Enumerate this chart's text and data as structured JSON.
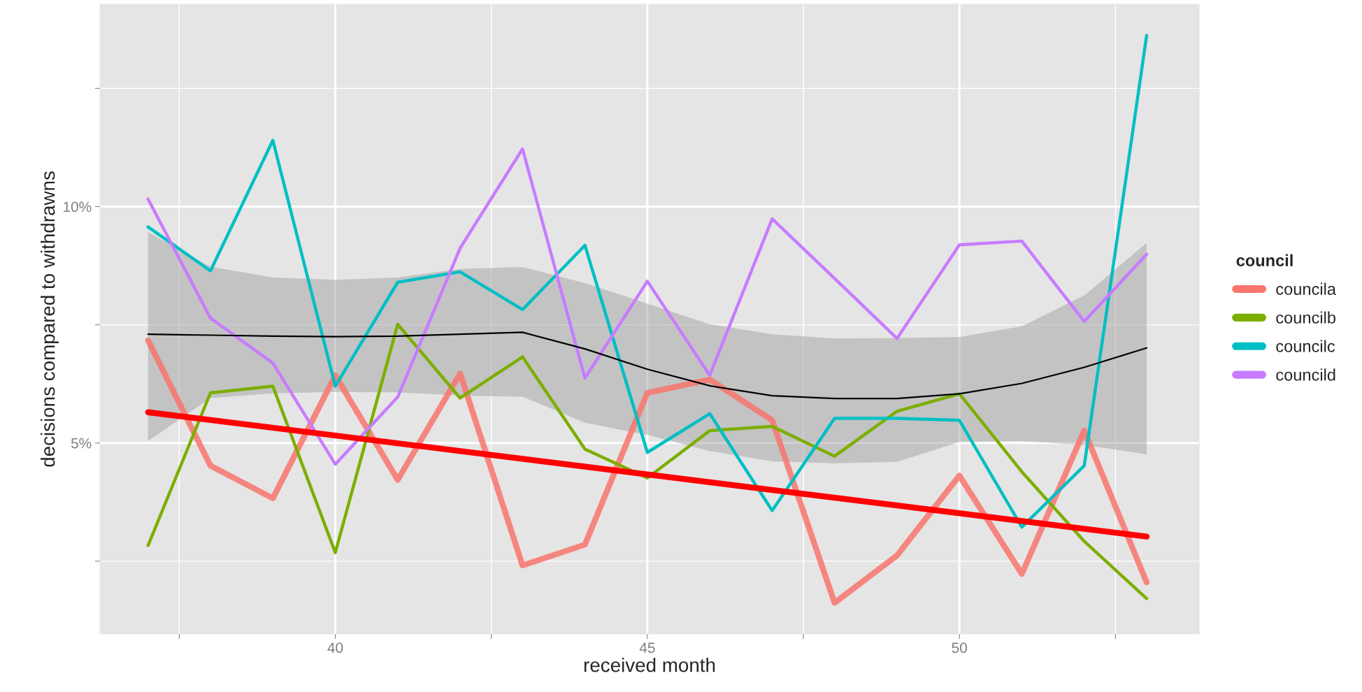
{
  "chart_data": {
    "type": "line",
    "xlabel": "received month",
    "ylabel": "decisions compared to withdrawns",
    "legend_title": "council",
    "legend": "right",
    "grid": true,
    "x": [
      37,
      38,
      39,
      40,
      41,
      42,
      43,
      44,
      45,
      46,
      47,
      48,
      49,
      50,
      51,
      52,
      53
    ],
    "series": [
      {
        "name": "councila",
        "color": "#f8766d",
        "values": [
          7.17,
          4.52,
          3.83,
          6.43,
          4.22,
          6.47,
          2.41,
          2.85,
          6.06,
          6.34,
          5.48,
          1.62,
          2.62,
          4.31,
          2.23,
          5.26,
          2.05
        ]
      },
      {
        "name": "councilb",
        "color": "#7cae00",
        "values": [
          2.83,
          6.06,
          6.2,
          2.68,
          7.51,
          5.95,
          6.82,
          4.87,
          4.26,
          5.26,
          5.35,
          4.72,
          5.67,
          6.04,
          4.39,
          2.92,
          1.71
        ]
      },
      {
        "name": "councilc",
        "color": "#00bfc4",
        "values": [
          9.57,
          8.64,
          11.4,
          6.2,
          8.4,
          8.62,
          7.82,
          9.18,
          4.8,
          5.62,
          3.57,
          5.52,
          5.52,
          5.48,
          3.22,
          4.52,
          13.62
        ]
      },
      {
        "name": "councild",
        "color": "#c77cff",
        "values": [
          10.16,
          7.64,
          6.69,
          4.55,
          5.97,
          9.12,
          11.22,
          6.37,
          8.42,
          6.43,
          9.74,
          8.48,
          7.21,
          9.19,
          9.27,
          7.57,
          8.99
        ]
      },
      {
        "color": "#ff0000",
        "x": [
          37,
          53
        ],
        "values": [
          5.65,
          3.02
        ]
      },
      {
        "color": "#000000",
        "values": [
          7.3,
          7.28,
          7.26,
          7.25,
          7.26,
          7.3,
          7.34,
          6.99,
          6.56,
          6.21,
          6.0,
          5.94,
          5.94,
          6.04,
          6.26,
          6.6,
          7.01
        ],
        "lower": [
          5.04,
          5.95,
          6.05,
          6.08,
          6.07,
          6.0,
          5.98,
          5.43,
          5.17,
          4.83,
          4.61,
          4.57,
          4.6,
          5.02,
          5.04,
          4.96,
          4.76
        ],
        "upper": [
          9.46,
          8.73,
          8.5,
          8.45,
          8.5,
          8.68,
          8.72,
          8.38,
          7.95,
          7.51,
          7.3,
          7.21,
          7.22,
          7.24,
          7.47,
          8.12,
          9.23
        ]
      }
    ],
    "xlim": [
      36.23,
      53.84
    ],
    "ylim": [
      0.96,
      14.28
    ],
    "xticks": [
      {
        "value": 37.5,
        "label": null
      },
      40,
      {
        "value": 42.5,
        "label": null
      },
      45,
      {
        "value": 47.5,
        "label": null
      },
      50,
      {
        "value": 52.5,
        "label": null
      }
    ],
    "yticks": [
      {
        "value": 2.5,
        "label": null
      },
      {
        "value": 5,
        "label": "5%"
      },
      {
        "value": 7.5,
        "label": null
      },
      {
        "value": 10,
        "label": "10%"
      },
      {
        "value": 12.5,
        "label": null
      }
    ]
  }
}
